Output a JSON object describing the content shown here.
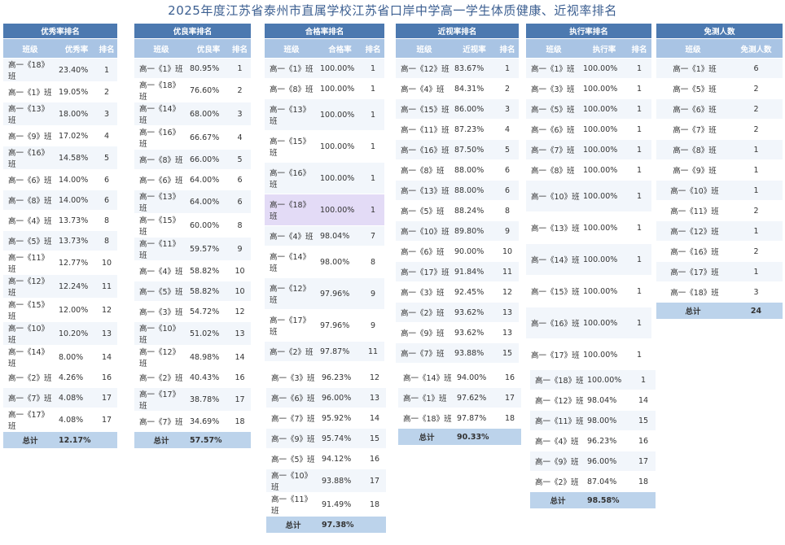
{
  "title": "2025年度江苏省泰州市直属学校江苏省口岸中学高一学生体质健康、近视率排名",
  "youxiu": {
    "header": "优秀率排名",
    "cols": [
      "班级",
      "优秀率",
      "排名"
    ],
    "rows": [
      [
        "高一《18》班",
        "23.40%",
        "1"
      ],
      [
        "高一《1》班",
        "19.05%",
        "2"
      ],
      [
        "高一《13》班",
        "18.00%",
        "3"
      ],
      [
        "高一《9》班",
        "17.02%",
        "4"
      ],
      [
        "高一《16》班",
        "14.58%",
        "5"
      ],
      [
        "高一《6》班",
        "14.00%",
        "6"
      ],
      [
        "高一《8》班",
        "14.00%",
        "6"
      ],
      [
        "高一《4》班",
        "13.73%",
        "8"
      ],
      [
        "高一《5》班",
        "13.73%",
        "8"
      ],
      [
        "高一《11》班",
        "12.77%",
        "10"
      ],
      [
        "高一《12》班",
        "12.24%",
        "11"
      ],
      [
        "高一《15》班",
        "12.00%",
        "12"
      ],
      [
        "高一《10》班",
        "10.20%",
        "13"
      ],
      [
        "高一《14》班",
        "8.00%",
        "14"
      ],
      [
        "高一《3》班",
        "5.66%",
        "15"
      ],
      [
        "高一《2》班",
        "4.26%",
        "16"
      ],
      [
        "高一《7》班",
        "4.08%",
        "17"
      ],
      [
        "高一《17》班",
        "4.08%",
        "17"
      ]
    ],
    "total": [
      "总计",
      "12.17%",
      ""
    ]
  },
  "youliang": {
    "header": "优良率排名",
    "cols": [
      "班级",
      "优良率",
      "排名"
    ],
    "rows": [
      [
        "高一《1》班",
        "80.95%",
        "1"
      ],
      [
        "高一《18》班",
        "76.60%",
        "2"
      ],
      [
        "高一《14》班",
        "68.00%",
        "3"
      ],
      [
        "高一《16》班",
        "66.67%",
        "4"
      ],
      [
        "高一《8》班",
        "66.00%",
        "5"
      ],
      [
        "高一《6》班",
        "64.00%",
        "6"
      ],
      [
        "高一《13》班",
        "64.00%",
        "6"
      ],
      [
        "高一《15》班",
        "60.00%",
        "8"
      ],
      [
        "高一《11》班",
        "59.57%",
        "9"
      ],
      [
        "高一《4》班",
        "58.82%",
        "10"
      ],
      [
        "高一《5》班",
        "58.82%",
        "10"
      ],
      [
        "高一《3》班",
        "54.72%",
        "12"
      ],
      [
        "高一《10》班",
        "51.02%",
        "13"
      ],
      [
        "高一《12》班",
        "48.98%",
        "14"
      ],
      [
        "高一《9》班",
        "46.81%",
        "15"
      ],
      [
        "高一《2》班",
        "40.43%",
        "16"
      ],
      [
        "高一《17》班",
        "38.78%",
        "17"
      ],
      [
        "高一《7》班",
        "34.69%",
        "18"
      ]
    ],
    "total": [
      "总计",
      "57.57%",
      ""
    ]
  },
  "hege": {
    "header": "合格率排名",
    "cols": [
      "班级",
      "合格率",
      "排名"
    ],
    "rows": [
      [
        "高一《1》班",
        "100.00%",
        "1"
      ],
      [
        "高一《8》班",
        "100.00%",
        "1"
      ],
      [
        "高一《13》班",
        "100.00%",
        "1"
      ],
      [
        "高一《15》班",
        "100.00%",
        "1"
      ],
      [
        "高一《16》班",
        "100.00%",
        "1"
      ],
      [
        "高一《18》班",
        "100.00%",
        "1"
      ],
      [
        "高一《4》班",
        "98.04%",
        "7"
      ],
      [
        "高一《14》班",
        "98.00%",
        "8"
      ],
      [
        "高一《12》班",
        "97.96%",
        "9"
      ],
      [
        "高一《17》班",
        "97.96%",
        "9"
      ],
      [
        "高一《2》班",
        "97.87%",
        "11"
      ],
      [
        "高一《3》班",
        "96.23%",
        "12"
      ],
      [
        "高一《6》班",
        "96.00%",
        "13"
      ],
      [
        "高一《7》班",
        "95.92%",
        "14"
      ],
      [
        "高一《9》班",
        "95.74%",
        "15"
      ],
      [
        "高一《5》班",
        "94.12%",
        "16"
      ],
      [
        "高一《10》班",
        "93.88%",
        "17"
      ],
      [
        "高一《11》班",
        "91.49%",
        "18"
      ]
    ],
    "total": [
      "总计",
      "97.38%",
      ""
    ]
  },
  "jinshi": {
    "header": "近视率排名",
    "cols": [
      "班级",
      "近视率",
      "排名"
    ],
    "rows": [
      [
        "高一《12》班",
        "83.67%",
        "1"
      ],
      [
        "高一《4》班",
        "84.31%",
        "2"
      ],
      [
        "高一《15》班",
        "86.00%",
        "3"
      ],
      [
        "高一《11》班",
        "87.23%",
        "4"
      ],
      [
        "高一《16》班",
        "87.50%",
        "5"
      ],
      [
        "高一《8》班",
        "88.00%",
        "6"
      ],
      [
        "高一《13》班",
        "88.00%",
        "6"
      ],
      [
        "高一《5》班",
        "88.24%",
        "8"
      ],
      [
        "高一《10》班",
        "89.80%",
        "9"
      ],
      [
        "高一《6》班",
        "90.00%",
        "10"
      ],
      [
        "高一《17》班",
        "91.84%",
        "11"
      ],
      [
        "高一《3》班",
        "92.45%",
        "12"
      ],
      [
        "高一《2》班",
        "93.62%",
        "13"
      ],
      [
        "高一《9》班",
        "93.62%",
        "13"
      ],
      [
        "高一《7》班",
        "93.88%",
        "15"
      ],
      [
        "高一《14》班",
        "94.00%",
        "16"
      ],
      [
        "高一《1》班",
        "97.62%",
        "17"
      ],
      [
        "高一《18》班",
        "97.87%",
        "18"
      ]
    ],
    "total": [
      "总计",
      "90.33%",
      ""
    ]
  },
  "zhixing": {
    "header": "执行率排名",
    "cols": [
      "班级",
      "执行率",
      "排名"
    ],
    "rows": [
      [
        "高一《1》班",
        "100.00%",
        "1"
      ],
      [
        "高一《3》班",
        "100.00%",
        "1"
      ],
      [
        "高一《5》班",
        "100.00%",
        "1"
      ],
      [
        "高一《6》班",
        "100.00%",
        "1"
      ],
      [
        "高一《7》班",
        "100.00%",
        "1"
      ],
      [
        "高一《8》班",
        "100.00%",
        "1"
      ],
      [
        "高一《10》班",
        "100.00%",
        "1"
      ],
      [
        "高一《13》班",
        "100.00%",
        "1"
      ],
      [
        "高一《14》班",
        "100.00%",
        "1"
      ],
      [
        "高一《15》班",
        "100.00%",
        "1"
      ],
      [
        "高一《16》班",
        "100.00%",
        "1"
      ],
      [
        "高一《17》班",
        "100.00%",
        "1"
      ],
      [
        "高一《18》班",
        "100.00%",
        "1"
      ],
      [
        "高一《12》班",
        "98.04%",
        "14"
      ],
      [
        "高一《11》班",
        "98.00%",
        "15"
      ],
      [
        "高一《4》班",
        "96.23%",
        "16"
      ],
      [
        "高一《9》班",
        "96.00%",
        "17"
      ],
      [
        "高一《2》班",
        "87.04%",
        "18"
      ]
    ],
    "total": [
      "总计",
      "98.58%",
      ""
    ]
  },
  "mianche": {
    "header": "免测人数",
    "cols": [
      "班级",
      "免测人数"
    ],
    "rows": [
      [
        "高一《1》班",
        "6"
      ],
      [
        "高一《5》班",
        "2"
      ],
      [
        "高一《6》班",
        "2"
      ],
      [
        "高一《7》班",
        "2"
      ],
      [
        "高一《8》班",
        "1"
      ],
      [
        "高一《9》班",
        "1"
      ],
      [
        "高一《10》班",
        "1"
      ],
      [
        "高一《11》班",
        "2"
      ],
      [
        "高一《12》班",
        "1"
      ],
      [
        "高一《16》班",
        "2"
      ],
      [
        "高一《17》班",
        "1"
      ],
      [
        "高一《18》班",
        "3"
      ]
    ],
    "total": [
      "总计",
      "24"
    ]
  }
}
